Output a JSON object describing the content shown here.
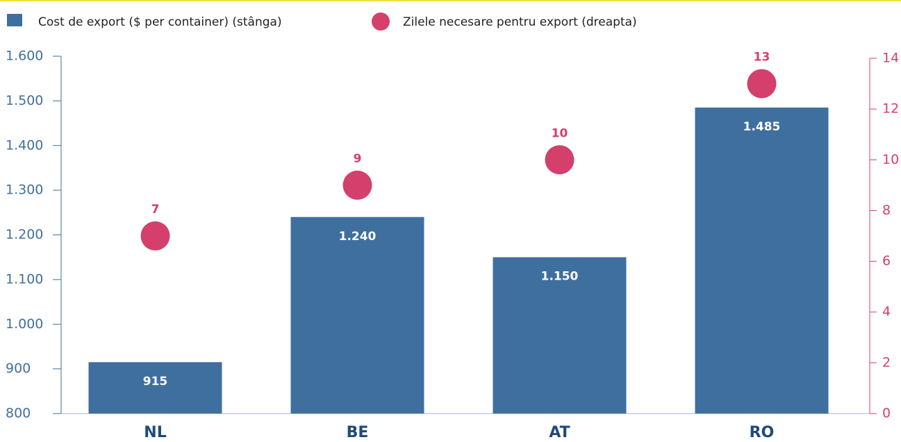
{
  "chart_data": {
    "type": "bar",
    "categories": [
      "NL",
      "BE",
      "AT",
      "RO"
    ],
    "series": [
      {
        "name": "Cost de export ($ per container) (stânga)",
        "color": "#3f6f9f",
        "values": [
          915,
          1240,
          1150,
          1485
        ],
        "value_labels": [
          "915",
          "1.240",
          "1.150",
          "1.485"
        ]
      },
      {
        "name": "Zilele necesare pentru export (dreapta)",
        "type": "scatter",
        "axis": "y2",
        "color": "#d43f6c",
        "values": [
          7,
          9,
          10,
          13
        ]
      }
    ],
    "ylim": [
      800,
      1600
    ],
    "yticks": [
      800,
      900,
      {
        "value": 1000,
        "label": "1.000"
      },
      {
        "value": 1100,
        "label": "1.100"
      },
      {
        "value": 1200,
        "label": "1.200"
      },
      {
        "value": 1300,
        "label": "1.300"
      },
      {
        "value": 1400,
        "label": "1.400"
      },
      {
        "value": 1500,
        "label": "1.500"
      },
      {
        "value": 1600,
        "label": "1.600"
      }
    ],
    "y2lim": [
      0,
      14
    ],
    "y2ticks": [
      0,
      2,
      4,
      6,
      8,
      10,
      12,
      14
    ]
  }
}
